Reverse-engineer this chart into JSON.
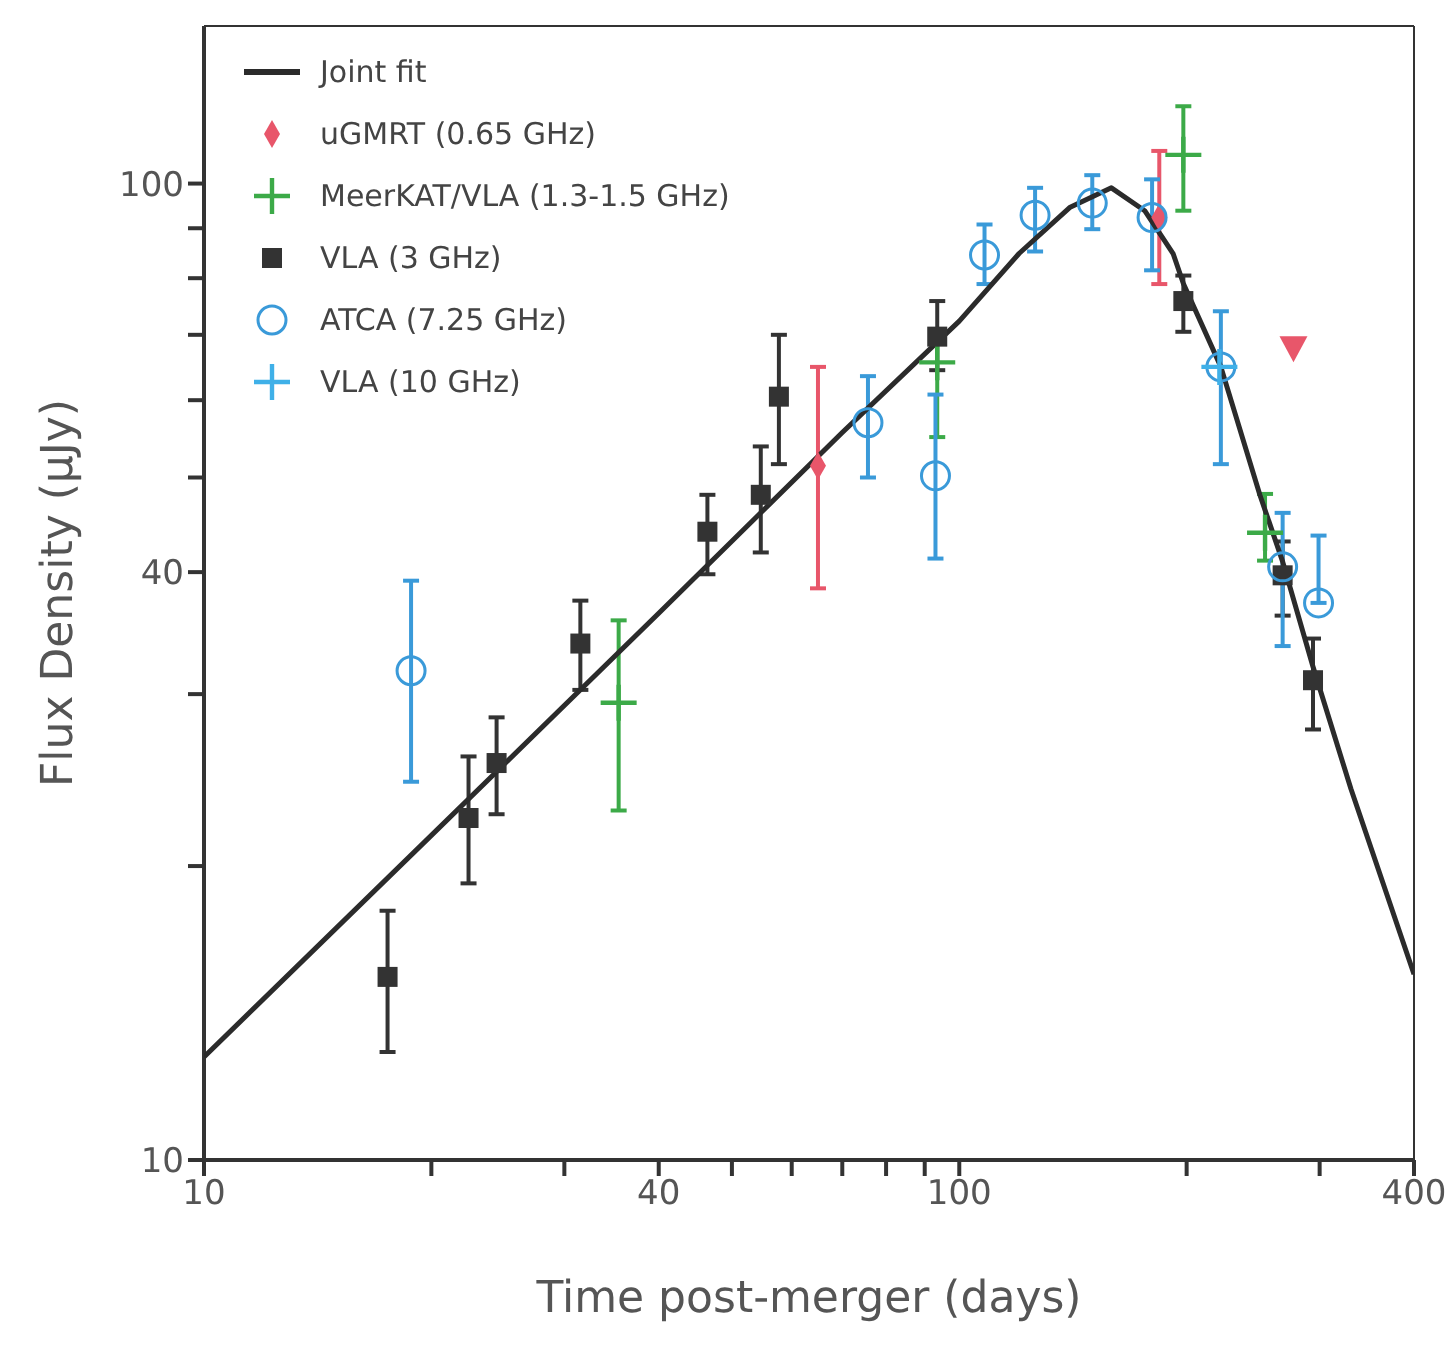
{
  "chart_data": {
    "type": "scatter",
    "xlabel": "Time post-merger (days)",
    "ylabel": "Flux Density (μJy)",
    "log": "xy",
    "legend": "top left",
    "grid": false,
    "xlim": [
      10,
      400
    ],
    "xticks": [
      10,
      {
        "value": 20,
        "label": null
      },
      {
        "value": 30,
        "label": null
      },
      40,
      {
        "value": 50,
        "label": null
      },
      {
        "value": 60,
        "label": null
      },
      {
        "value": 70,
        "label": null
      },
      {
        "value": 80,
        "label": null
      },
      {
        "value": 90,
        "label": null
      },
      100,
      {
        "value": 200,
        "label": null
      },
      {
        "value": 300,
        "label": null
      },
      400
    ],
    "ylim": [
      10,
      145
    ],
    "yticks": [
      10,
      {
        "value": 20,
        "label": null
      },
      {
        "value": 30,
        "label": null
      },
      40,
      {
        "value": 50,
        "label": null
      },
      {
        "value": 60,
        "label": null
      },
      {
        "value": 70,
        "label": null
      },
      {
        "value": 80,
        "label": null
      },
      {
        "value": 90,
        "label": null
      },
      100
    ],
    "series": [
      {
        "name": "Joint fit",
        "type": "line",
        "color": "#2b2b2b",
        "marker": "none",
        "line_style": "solid",
        "x": [
          10,
          20,
          40,
          70,
          100,
          120,
          140,
          159,
          176,
          192,
          198,
          222,
          250,
          268,
          294,
          330,
          400
        ],
        "values": [
          12.75,
          21.5,
          36.3,
          55.6,
          72.3,
          84.8,
          94.5,
          99,
          93.8,
          84.7,
          79,
          64.9,
          48,
          41,
          32,
          24,
          15.5
        ]
      },
      {
        "name": "uGMRT (0.65 GHz)",
        "color": "#e8566a",
        "marker": "diamond",
        "x": [
          65,
          184
        ],
        "values": [
          51.4,
          92.3
        ],
        "errors": [
          [
            38.5,
            64.9
          ],
          [
            78.9,
            108
          ]
        ]
      },
      {
        "name": "MeerKAT/VLA (1.3-1.5 GHz)",
        "color": "#3caa48",
        "marker": "cross",
        "x": [
          35.4,
          93.5,
          198,
          254
        ],
        "values": [
          29.4,
          65.6,
          107,
          43.9
        ],
        "errors": [
          [
            22.8,
            35.7
          ],
          [
            55,
            69
          ],
          [
            93.8,
            120
          ],
          [
            41.1,
            48.1
          ]
        ]
      },
      {
        "name": "VLA (3 GHz)",
        "color": "#333333",
        "marker": "square",
        "x": [
          17.5,
          22.4,
          24.4,
          31.5,
          46.4,
          54.6,
          57.7,
          93.5,
          198,
          268,
          294
        ],
        "values": [
          15.4,
          22.4,
          25.5,
          33.8,
          44,
          48,
          60.5,
          69.7,
          75.8,
          39.7,
          31
        ],
        "errors": [
          [
            12.9,
            18
          ],
          [
            19.2,
            25.9
          ],
          [
            22.6,
            28.4
          ],
          [
            30.3,
            37.4
          ],
          [
            39.8,
            48
          ],
          [
            41.9,
            53.8
          ],
          [
            51.6,
            70
          ],
          [
            64.4,
            75.8
          ],
          [
            70.5,
            80.5
          ],
          [
            36.1,
            43
          ],
          [
            27.6,
            34.2
          ]
        ]
      },
      {
        "name": "ATCA (7.25 GHz)",
        "color": "#3a9ad9",
        "marker": "circle",
        "x": [
          18.8,
          75.7,
          93,
          108,
          126,
          150,
          180,
          222,
          268,
          299
        ],
        "values": [
          31.7,
          56.9,
          50.2,
          84.5,
          92.8,
          95.5,
          92.3,
          64.9,
          40.5,
          37.2
        ],
        "errors": [
          [
            24.4,
            39.2
          ],
          [
            50,
            63.5
          ],
          [
            41.3,
            60.8
          ],
          [
            78.9,
            90.8
          ],
          [
            85.2,
            99
          ],
          [
            89.8,
            102
          ],
          [
            81.5,
            101
          ],
          [
            51.6,
            74
          ],
          [
            33.6,
            46
          ],
          [
            37.2,
            43.6
          ]
        ]
      },
      {
        "name": "VLA (10 GHz)",
        "color": "#3fb0e8",
        "marker": "cross",
        "x": [
          221
        ],
        "values": [
          64.9
        ]
      },
      {
        "color": "#e8566a",
        "marker": "triangle",
        "x": [
          277
        ],
        "values": [
          67.8
        ]
      }
    ]
  }
}
